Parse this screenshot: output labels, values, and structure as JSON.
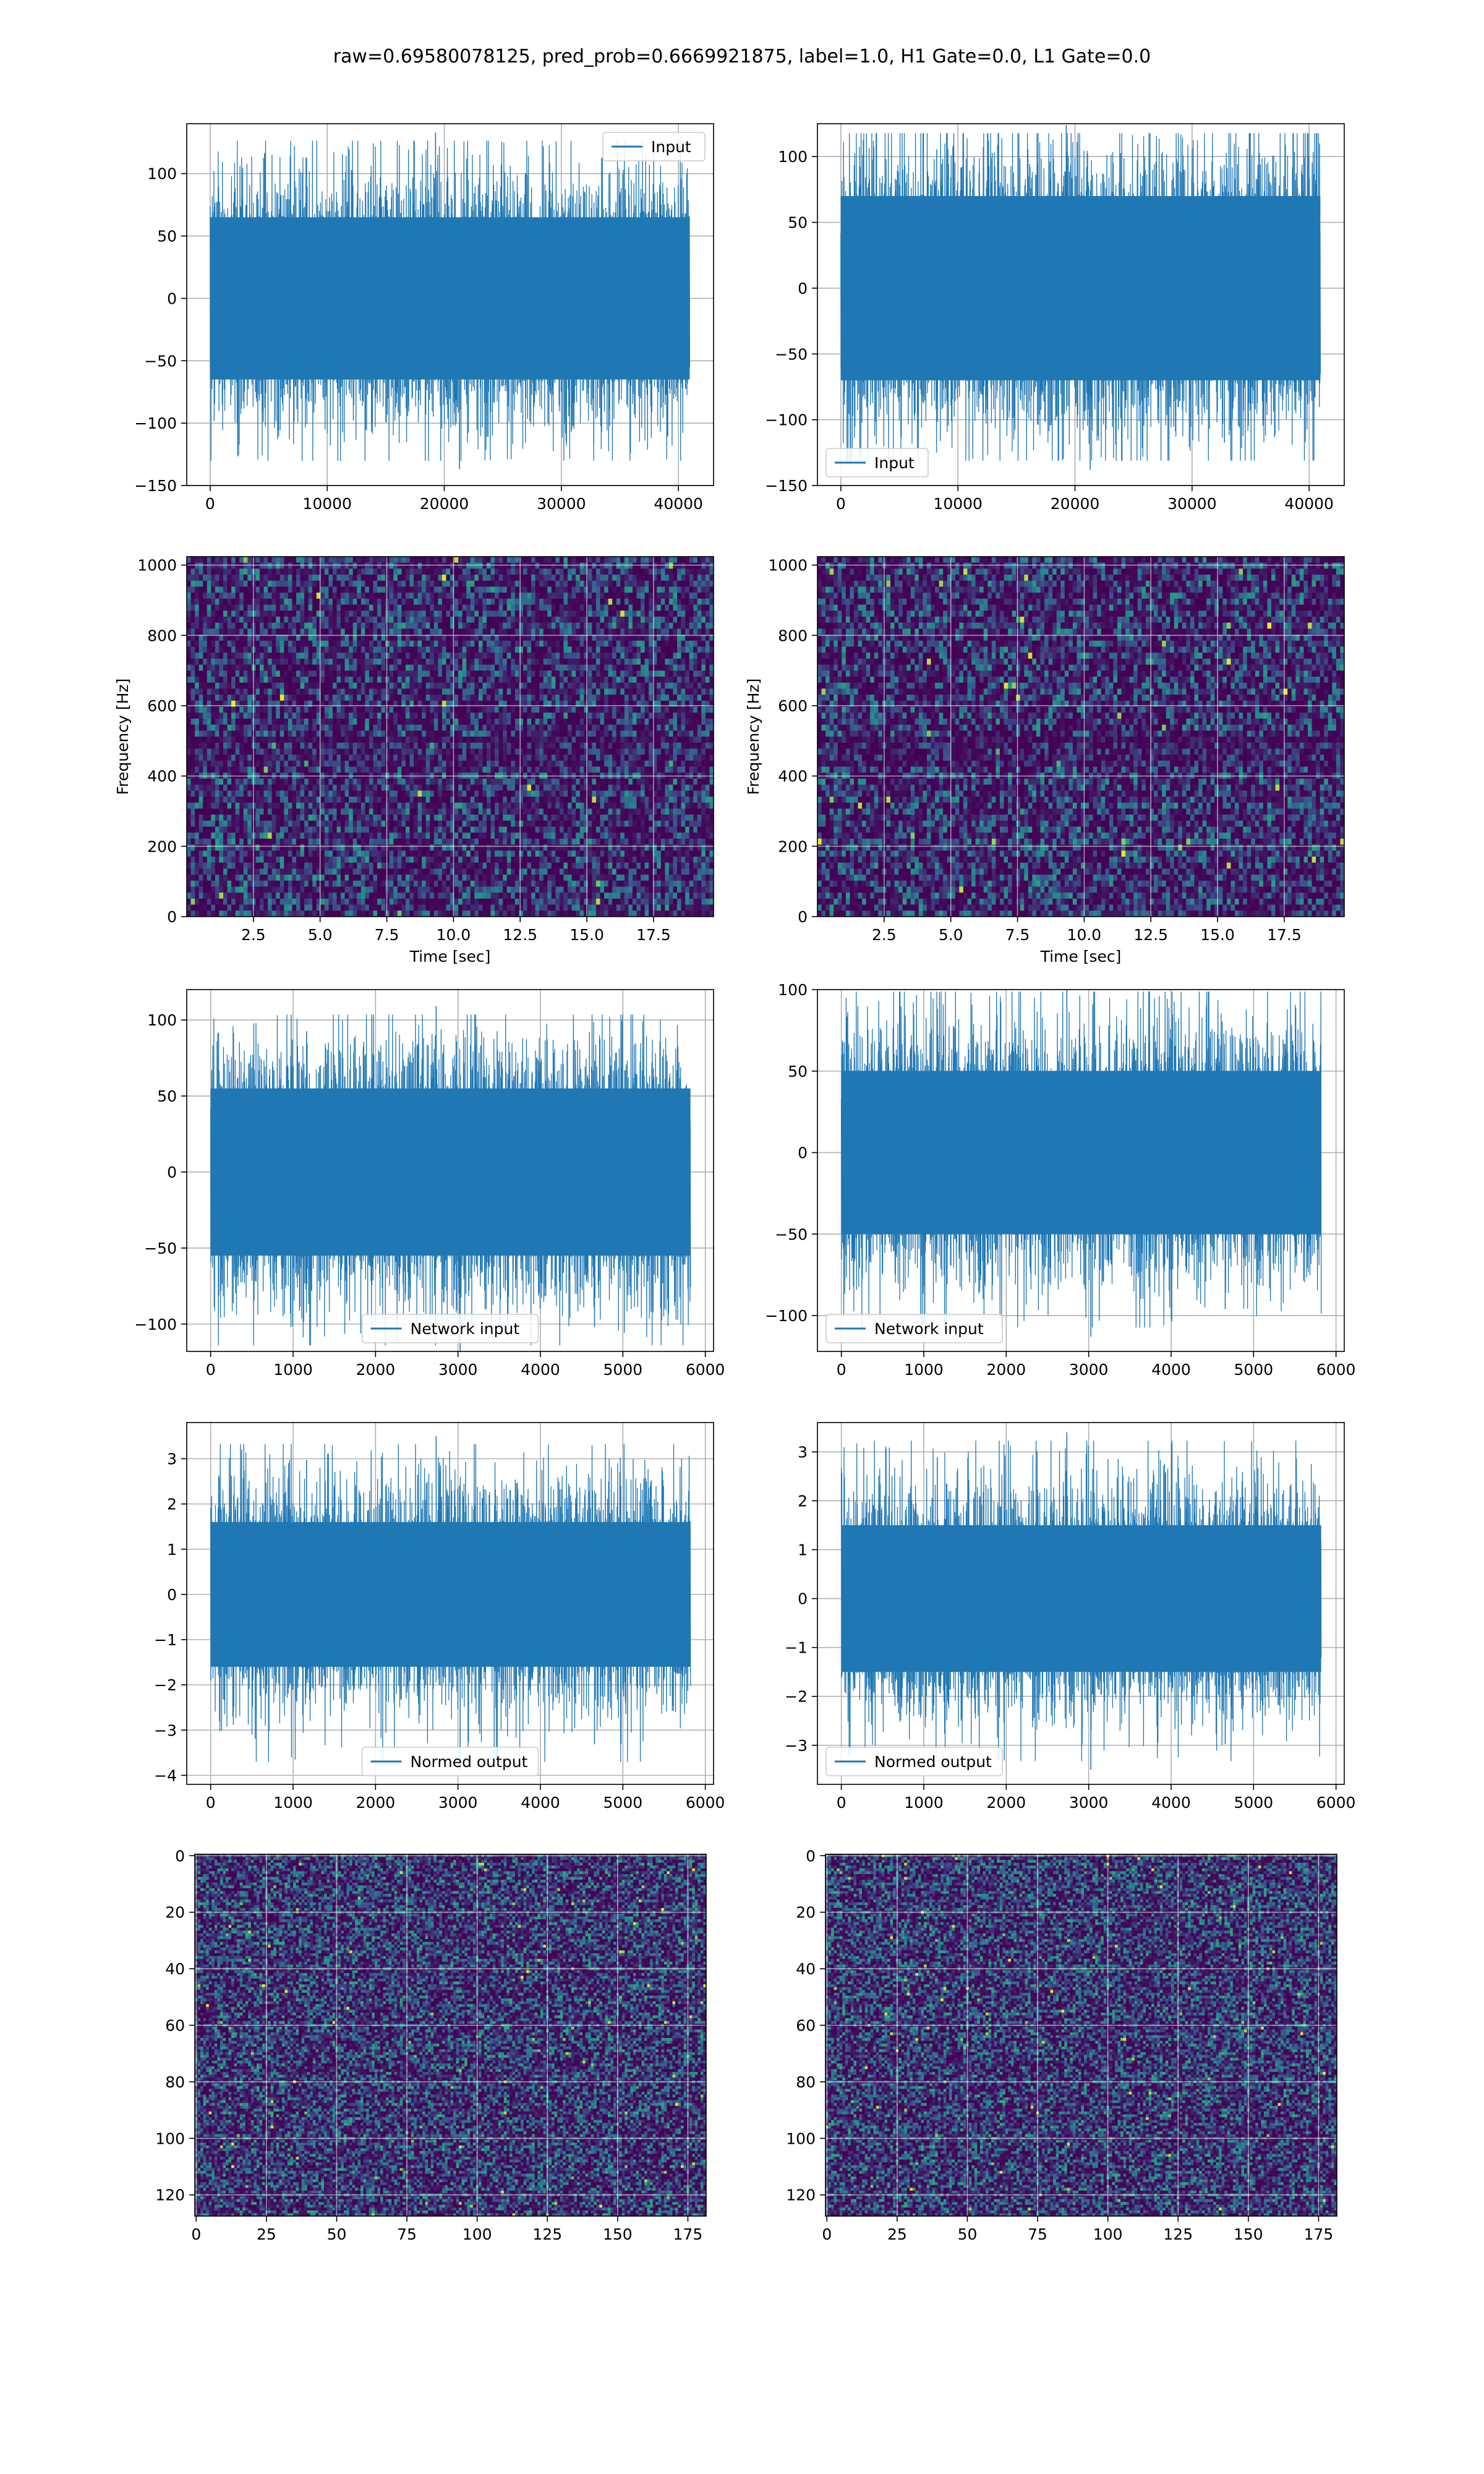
{
  "figure": {
    "title": "raw=0.69580078125, pred_prob=0.6669921875, label=1.0, H1 Gate=0.0, L1 Gate=0.0"
  },
  "colors": {
    "series": "#1f77b4",
    "grid": "#b0b0b0",
    "axes": "#000000",
    "viridis_dark": "#440154",
    "viridis_blue": "#3b528b",
    "viridis_teal": "#21918c",
    "viridis_green": "#5ec962",
    "viridis_yellow": "#fde725"
  },
  "chart_data": [
    {
      "id": "input-h1",
      "type": "line",
      "title": "",
      "xlabel": "",
      "ylabel": "",
      "xlim": [
        -2000,
        43000
      ],
      "ylim": [
        -150,
        140
      ],
      "xticks": [
        0,
        10000,
        20000,
        30000,
        40000
      ],
      "yticks": [
        -150,
        -100,
        -50,
        0,
        50,
        100
      ],
      "xticklabels": [
        "0",
        "10000",
        "20000",
        "30000",
        "40000"
      ],
      "yticklabels": [
        "−150",
        "−100",
        "−50",
        "0",
        "50",
        "100"
      ],
      "signal": {
        "x_start": 0,
        "x_end": 40960,
        "band": 65,
        "peak_max": 133,
        "peak_min": -137
      },
      "legend": {
        "entries": [
          "Input"
        ],
        "position": "upper right"
      },
      "grid": true
    },
    {
      "id": "input-l1",
      "type": "line",
      "title": "",
      "xlabel": "",
      "ylabel": "",
      "xlim": [
        -2000,
        43000
      ],
      "ylim": [
        -150,
        125
      ],
      "xticks": [
        0,
        10000,
        20000,
        30000,
        40000
      ],
      "yticks": [
        -150,
        -100,
        -50,
        0,
        50,
        100
      ],
      "xticklabels": [
        "0",
        "10000",
        "20000",
        "30000",
        "40000"
      ],
      "yticklabels": [
        "−150",
        "−100",
        "−50",
        "0",
        "50",
        "100"
      ],
      "signal": {
        "x_start": 0,
        "x_end": 40960,
        "band": 70,
        "peak_max": 124,
        "peak_min": -138
      },
      "legend": {
        "entries": [
          "Input"
        ],
        "position": "lower left"
      },
      "grid": true
    },
    {
      "id": "spectrogram-h1",
      "type": "heatmap",
      "title": "",
      "xlabel": "Time [sec]",
      "ylabel": "Frequency [Hz]",
      "xlim": [
        0.0,
        19.75
      ],
      "ylim": [
        0,
        1024
      ],
      "xticks": [
        2.5,
        5.0,
        7.5,
        10.0,
        12.5,
        15.0,
        17.5
      ],
      "yticks": [
        0,
        200,
        400,
        600,
        800,
        1000
      ],
      "xticklabels": [
        "2.5",
        "5.0",
        "7.5",
        "10.0",
        "12.5",
        "15.0",
        "17.5"
      ],
      "yticklabels": [
        "0",
        "200",
        "400",
        "600",
        "800",
        "1000"
      ],
      "grid_cells": {
        "cols": 130,
        "rows": 60,
        "seed": 11
      },
      "colormap": "viridis",
      "grid": true
    },
    {
      "id": "spectrogram-l1",
      "type": "heatmap",
      "title": "",
      "xlabel": "Time [sec]",
      "ylabel": "Frequency [Hz]",
      "xlim": [
        0.0,
        19.75
      ],
      "ylim": [
        0,
        1024
      ],
      "xticks": [
        2.5,
        5.0,
        7.5,
        10.0,
        12.5,
        15.0,
        17.5
      ],
      "yticks": [
        0,
        200,
        400,
        600,
        800,
        1000
      ],
      "xticklabels": [
        "2.5",
        "5.0",
        "7.5",
        "10.0",
        "12.5",
        "15.0",
        "17.5"
      ],
      "yticklabels": [
        "0",
        "200",
        "400",
        "600",
        "800",
        "1000"
      ],
      "grid_cells": {
        "cols": 130,
        "rows": 60,
        "seed": 23
      },
      "colormap": "viridis",
      "grid": true
    },
    {
      "id": "network-input-h1",
      "type": "line",
      "title": "",
      "xlabel": "",
      "ylabel": "",
      "xlim": [
        -290,
        6100
      ],
      "ylim": [
        -118,
        120
      ],
      "xticks": [
        0,
        1000,
        2000,
        3000,
        4000,
        5000,
        6000
      ],
      "yticks": [
        -100,
        -50,
        0,
        50,
        100
      ],
      "xticklabels": [
        "0",
        "1000",
        "2000",
        "3000",
        "4000",
        "5000",
        "6000"
      ],
      "yticklabels": [
        "−100",
        "−50",
        "0",
        "50",
        "100"
      ],
      "signal": {
        "x_start": 0,
        "x_end": 5820,
        "band": 55,
        "peak_max": 109,
        "peak_min": -120
      },
      "legend": {
        "entries": [
          "Network input"
        ],
        "position": "lower center"
      },
      "grid": true
    },
    {
      "id": "network-input-l1",
      "type": "line",
      "title": "",
      "xlabel": "",
      "ylabel": "",
      "xlim": [
        -290,
        6100
      ],
      "ylim": [
        -122,
        100
      ],
      "xticks": [
        0,
        1000,
        2000,
        3000,
        4000,
        5000,
        6000
      ],
      "yticks": [
        -100,
        -50,
        0,
        50,
        100
      ],
      "xticklabels": [
        "0",
        "1000",
        "2000",
        "3000",
        "4000",
        "5000",
        "6000"
      ],
      "yticklabels": [
        "−100",
        "−50",
        "0",
        "50",
        "100"
      ],
      "signal": {
        "x_start": 0,
        "x_end": 5820,
        "band": 50,
        "peak_max": 104,
        "peak_min": -113
      },
      "legend": {
        "entries": [
          "Network input"
        ],
        "position": "lower left"
      },
      "grid": true
    },
    {
      "id": "normed-output-h1",
      "type": "line",
      "title": "",
      "xlabel": "",
      "ylabel": "",
      "xlim": [
        -290,
        6100
      ],
      "ylim": [
        -4.2,
        3.8
      ],
      "xticks": [
        0,
        1000,
        2000,
        3000,
        4000,
        5000,
        6000
      ],
      "yticks": [
        -4,
        -3,
        -2,
        -1,
        0,
        1,
        2,
        3
      ],
      "xticklabels": [
        "0",
        "1000",
        "2000",
        "3000",
        "4000",
        "5000",
        "6000"
      ],
      "yticklabels": [
        "−4",
        "−3",
        "−2",
        "−1",
        "0",
        "1",
        "2",
        "3"
      ],
      "signal": {
        "x_start": 0,
        "x_end": 5820,
        "band": 1.6,
        "peak_max": 3.5,
        "peak_min": -3.9
      },
      "legend": {
        "entries": [
          "Normed output"
        ],
        "position": "lower center"
      },
      "grid": true
    },
    {
      "id": "normed-output-l1",
      "type": "line",
      "title": "",
      "xlabel": "",
      "ylabel": "",
      "xlim": [
        -290,
        6100
      ],
      "ylim": [
        -3.8,
        3.6
      ],
      "xticks": [
        0,
        1000,
        2000,
        3000,
        4000,
        5000,
        6000
      ],
      "yticks": [
        -3,
        -2,
        -1,
        0,
        1,
        2,
        3
      ],
      "xticklabels": [
        "0",
        "1000",
        "2000",
        "3000",
        "4000",
        "5000",
        "6000"
      ],
      "yticklabels": [
        "−3",
        "−2",
        "−1",
        "0",
        "1",
        "2",
        "3"
      ],
      "signal": {
        "x_start": 0,
        "x_end": 5820,
        "band": 1.5,
        "peak_max": 3.4,
        "peak_min": -3.5
      },
      "legend": {
        "entries": [
          "Normed output"
        ],
        "position": "lower left"
      },
      "grid": true
    },
    {
      "id": "feature-map-h1",
      "type": "heatmap",
      "title": "",
      "xlabel": "",
      "ylabel": "",
      "xlim": [
        -0.5,
        181.5
      ],
      "ylim": [
        127.5,
        -0.5
      ],
      "y_inverted": true,
      "xticks": [
        0,
        25,
        50,
        75,
        100,
        125,
        150,
        175
      ],
      "yticks": [
        0,
        20,
        40,
        60,
        80,
        100,
        120
      ],
      "xticklabels": [
        "0",
        "25",
        "50",
        "75",
        "100",
        "125",
        "150",
        "175"
      ],
      "yticklabels": [
        "0",
        "20",
        "40",
        "60",
        "80",
        "100",
        "120"
      ],
      "grid_cells": {
        "cols": 182,
        "rows": 128,
        "seed": 37
      },
      "colormap": "viridis",
      "grid": true
    },
    {
      "id": "feature-map-l1",
      "type": "heatmap",
      "title": "",
      "xlabel": "",
      "ylabel": "",
      "xlim": [
        -0.5,
        181.5
      ],
      "ylim": [
        127.5,
        -0.5
      ],
      "y_inverted": true,
      "xticks": [
        0,
        25,
        50,
        75,
        100,
        125,
        150,
        175
      ],
      "yticks": [
        0,
        20,
        40,
        60,
        80,
        100,
        120
      ],
      "xticklabels": [
        "0",
        "25",
        "50",
        "75",
        "100",
        "125",
        "150",
        "175"
      ],
      "yticklabels": [
        "0",
        "20",
        "40",
        "60",
        "80",
        "100",
        "120"
      ],
      "grid_cells": {
        "cols": 182,
        "rows": 128,
        "seed": 53
      },
      "colormap": "viridis",
      "grid": true
    }
  ]
}
